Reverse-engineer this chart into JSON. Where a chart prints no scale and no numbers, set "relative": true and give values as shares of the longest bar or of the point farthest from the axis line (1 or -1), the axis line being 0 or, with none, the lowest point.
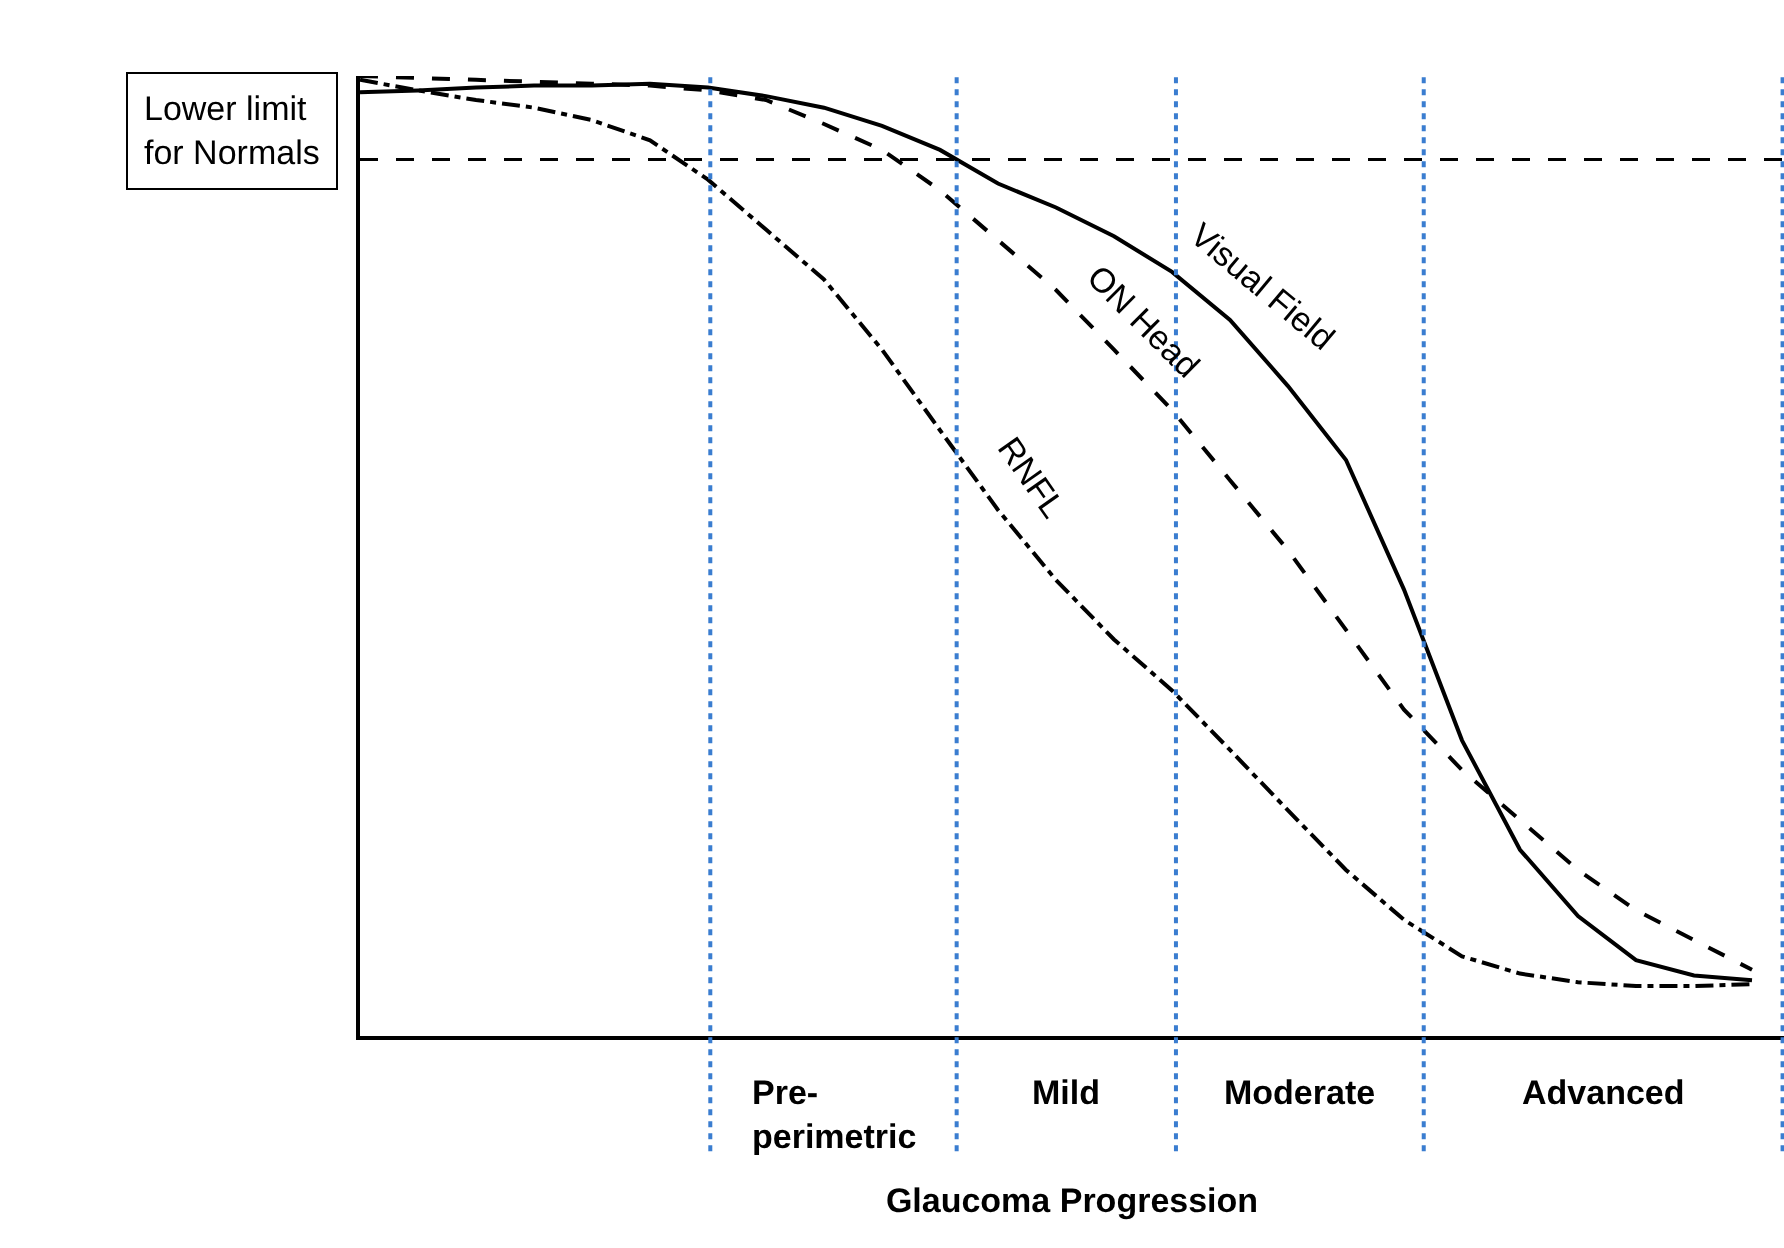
{
  "chart_data": {
    "type": "line",
    "relative": true,
    "xlabel": "Glaucoma Progression",
    "tick_labels": false,
    "legend": false,
    "marker": "none",
    "categories": [
      null,
      null,
      null,
      null,
      null,
      null,
      null,
      null,
      null,
      null,
      null,
      null,
      null,
      null,
      null,
      null,
      null,
      null,
      null,
      null,
      null,
      null,
      null,
      null,
      null
    ],
    "series": [
      {
        "name": "Visual Field",
        "color": "#000000",
        "line_style": "solid",
        "values": [
          0.983,
          0.985,
          0.988,
          0.99,
          0.99,
          0.992,
          0.988,
          0.979,
          0.967,
          0.948,
          0.923,
          0.888,
          0.863,
          0.833,
          0.796,
          0.746,
          0.677,
          0.6,
          0.465,
          0.308,
          0.194,
          0.125,
          0.079,
          0.063,
          0.058
        ]
      },
      {
        "name": "ON Head",
        "color": "#000000",
        "line_style": "dashed",
        "values": [
          1.0,
          0.998,
          0.996,
          0.994,
          0.992,
          0.99,
          0.985,
          0.975,
          0.95,
          0.923,
          0.881,
          0.829,
          0.777,
          0.715,
          0.652,
          0.579,
          0.506,
          0.423,
          0.34,
          0.277,
          0.225,
          0.173,
          0.131,
          0.1,
          0.069
        ]
      },
      {
        "name": "RNFL",
        "color": "#000000",
        "line_style": "dashdot",
        "values": [
          0.996,
          0.985,
          0.975,
          0.967,
          0.954,
          0.933,
          0.892,
          0.84,
          0.788,
          0.715,
          0.631,
          0.548,
          0.475,
          0.413,
          0.36,
          0.298,
          0.235,
          0.173,
          0.121,
          0.083,
          0.065,
          0.056,
          0.052,
          0.052,
          0.054
        ]
      }
    ],
    "ref_lines": [
      {
        "axis": "y",
        "value": 0.913,
        "label": "Lower limit\nfor Normals",
        "color": "#000000",
        "line_style": "dashed"
      }
    ],
    "annotations": [
      "Pre-\nperimetric",
      "Mild",
      "Moderate",
      "Advanced"
    ]
  }
}
